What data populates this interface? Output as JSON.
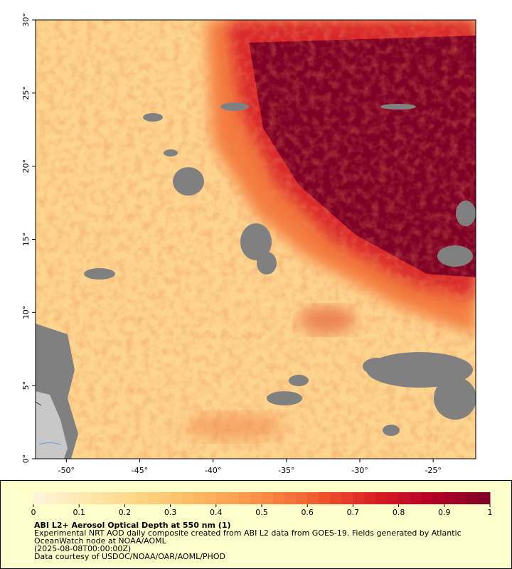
{
  "map": {
    "xlim": [
      -52.1,
      -22.1
    ],
    "ylim": [
      0,
      30
    ],
    "xticks": [
      {
        "value": -50,
        "label": "-50°"
      },
      {
        "value": -45,
        "label": "-45°"
      },
      {
        "value": -40,
        "label": "-40°"
      },
      {
        "value": -35,
        "label": "-35°"
      },
      {
        "value": -30,
        "label": "-30°"
      },
      {
        "value": -25,
        "label": "-25°"
      }
    ],
    "yticks": [
      {
        "value": 0,
        "label": "0°"
      },
      {
        "value": 5,
        "label": "5°"
      },
      {
        "value": 10,
        "label": "10°"
      },
      {
        "value": 15,
        "label": "15°"
      },
      {
        "value": 20,
        "label": "20°"
      },
      {
        "value": 25,
        "label": "25°"
      },
      {
        "value": 30,
        "label": "30°"
      }
    ]
  },
  "colorbar": {
    "clim": [
      0,
      1
    ],
    "ticks": [
      0,
      0.1,
      0.2,
      0.3,
      0.4,
      0.5,
      0.6,
      0.7,
      0.8,
      0.9,
      1
    ],
    "colors": [
      "#fff6dc",
      "#fee6a8",
      "#fed27e",
      "#fdb45f",
      "#fc8d45",
      "#f0592f",
      "#d91d24",
      "#b30027",
      "#800026"
    ]
  },
  "caption": {
    "title": "ABI L2+ Aerosol Optical Depth at 550 nm (1)",
    "lines": [
      "Experimental NRT AOD daily composite created from ABI L2 data from GOES-19. Fields generated by Atlantic",
      "OceanWatch node at NOAA/AOML",
      "(2025-08-08T00:00:00Z)",
      "Data courtesy of USDOC/NOAA/OAR/AOML/PHOD"
    ]
  }
}
